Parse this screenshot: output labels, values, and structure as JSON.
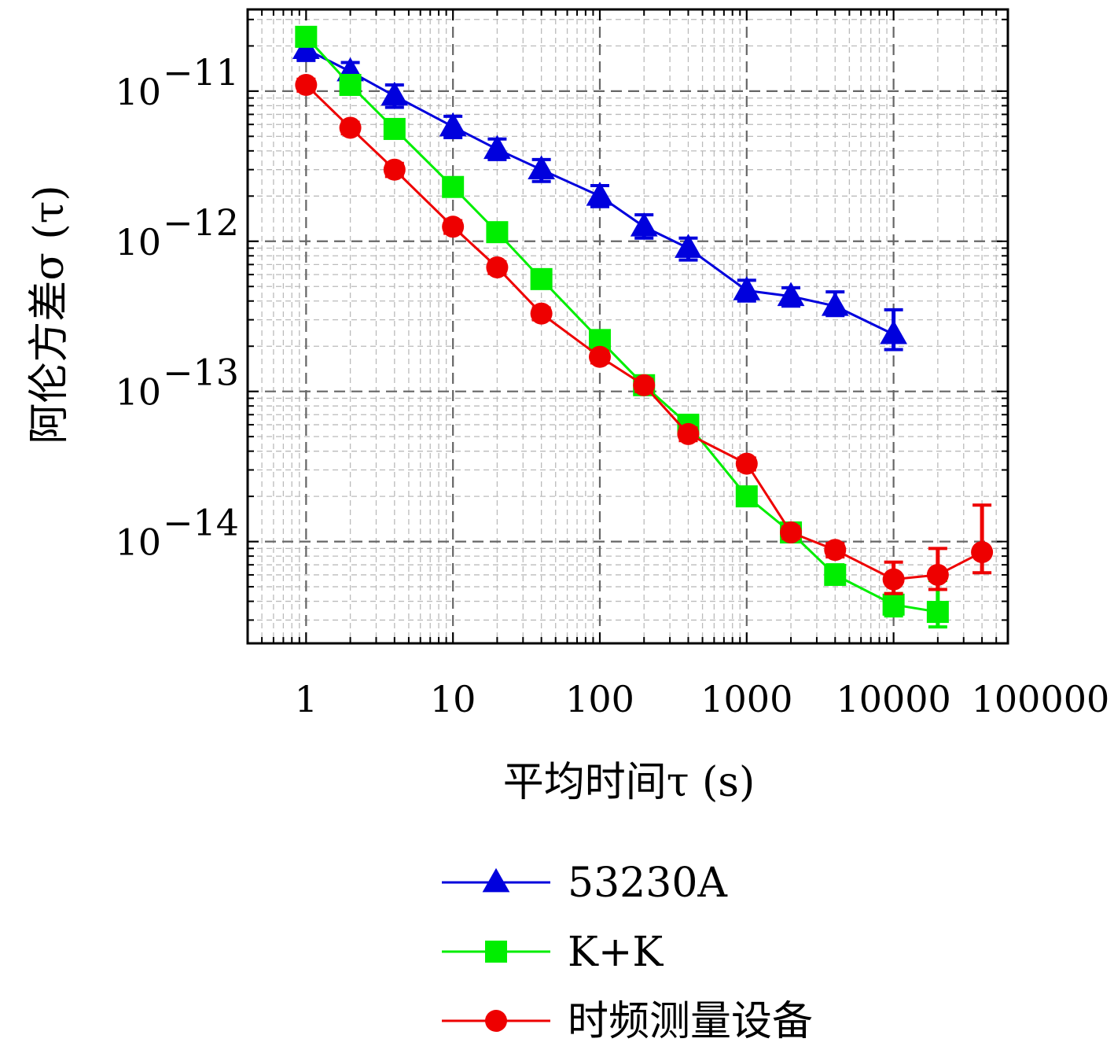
{
  "chart_data": {
    "type": "line",
    "xlabel": "平均时间τ (s)",
    "ylabel": "阿伦方差σ (τ)",
    "x_scale": "log",
    "y_scale": "log",
    "xlim": [
      0.4,
      60000
    ],
    "ylim": [
      2.1e-15,
      3.5e-11
    ],
    "grid": true,
    "x_ticks": [
      {
        "value": 1,
        "label": "1"
      },
      {
        "value": 10,
        "label": "10"
      },
      {
        "value": 100,
        "label": "100"
      },
      {
        "value": 1000,
        "label": "1000"
      },
      {
        "value": 10000,
        "label": "10000"
      },
      {
        "value": 100000,
        "label": "100000"
      }
    ],
    "y_ticks": [
      {
        "value": 1e-11,
        "base": "10",
        "exp": "−11"
      },
      {
        "value": 1e-12,
        "base": "10",
        "exp": "−12"
      },
      {
        "value": 1e-13,
        "base": "10",
        "exp": "−13"
      },
      {
        "value": 1e-14,
        "base": "10",
        "exp": "−14"
      }
    ],
    "legend_position": "bottom",
    "series": [
      {
        "name": "53230A",
        "color": "#0000dd",
        "marker": "triangle",
        "x": [
          1,
          2,
          4,
          10,
          20,
          40,
          100,
          200,
          400,
          1000,
          2000,
          4000,
          10000
        ],
        "y": [
          1.9e-11,
          1.35e-11,
          9.3e-12,
          5.8e-12,
          4.1e-12,
          3e-12,
          2e-12,
          1.25e-12,
          9e-13,
          4.7e-13,
          4.3e-13,
          3.7e-13,
          2.4e-13
        ],
        "err_low": [
          1.6e-11,
          1.15e-11,
          7.8e-12,
          4.9e-12,
          3.5e-12,
          2.5e-12,
          1.7e-12,
          1.05e-12,
          7.5e-13,
          4e-13,
          3.7e-13,
          3.2e-13,
          1.9e-13
        ],
        "err_high": [
          2.2e-11,
          1.55e-11,
          1.1e-11,
          6.8e-12,
          4.8e-12,
          3.5e-12,
          2.35e-12,
          1.5e-12,
          1.05e-12,
          5.5e-13,
          4.9e-13,
          4.6e-13,
          3.5e-13
        ]
      },
      {
        "name": "K+K",
        "color": "#00ee00",
        "marker": "square",
        "x": [
          1,
          2,
          4,
          10,
          20,
          40,
          100,
          200,
          400,
          1000,
          2000,
          4000,
          10000,
          20000
        ],
        "y": [
          2.3e-11,
          1.1e-11,
          5.6e-12,
          2.3e-12,
          1.15e-12,
          5.6e-13,
          2.2e-13,
          1.1e-13,
          6e-14,
          2e-14,
          1.15e-14,
          6e-15,
          3.8e-15,
          3.4e-15
        ],
        "err_low": [
          2.1e-11,
          1e-11,
          5.1e-12,
          2.1e-12,
          1.05e-12,
          5.1e-13,
          2e-13,
          1e-13,
          5.4e-14,
          1.8e-14,
          1.03e-14,
          5.2e-15,
          3.2e-15,
          2.7e-15
        ],
        "err_high": [
          2.5e-11,
          1.2e-11,
          6.1e-12,
          2.5e-12,
          1.25e-12,
          6.1e-13,
          2.4e-13,
          1.2e-13,
          6.6e-14,
          2.2e-14,
          1.27e-14,
          7e-15,
          4.5e-15,
          5.5e-15
        ]
      },
      {
        "name": "时频测量设备",
        "color": "#ee0000",
        "marker": "circle",
        "x": [
          1,
          2,
          4,
          10,
          20,
          40,
          100,
          200,
          400,
          1000,
          2000,
          4000,
          10000,
          20000,
          40000
        ],
        "y": [
          1.1e-11,
          5.7e-12,
          3e-12,
          1.25e-12,
          6.7e-13,
          3.3e-13,
          1.7e-13,
          1.1e-13,
          5.2e-14,
          3.3e-14,
          1.15e-14,
          8.8e-15,
          5.6e-15,
          6e-15,
          8.5e-15
        ],
        "err_low": [
          1e-11,
          5.2e-12,
          2.7e-12,
          1.13e-12,
          6.1e-13,
          3e-13,
          1.55e-13,
          1e-13,
          4.7e-14,
          3e-14,
          1.05e-14,
          7.9e-15,
          4.5e-15,
          4.8e-15,
          6.2e-15
        ],
        "err_high": [
          1.2e-11,
          6.2e-12,
          3.3e-12,
          1.37e-12,
          7.3e-13,
          3.6e-13,
          1.85e-13,
          1.2e-13,
          5.7e-14,
          3.6e-14,
          1.25e-14,
          9.7e-15,
          7.3e-15,
          9e-15,
          1.75e-14
        ]
      }
    ]
  }
}
